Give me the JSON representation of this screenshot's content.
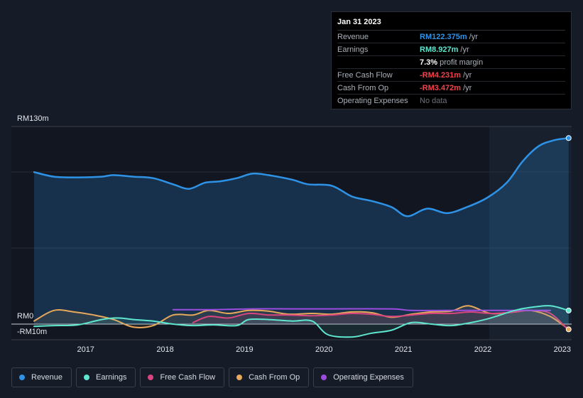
{
  "tooltip": {
    "date": "Jan 31 2023",
    "rows": {
      "revenue": {
        "label": "Revenue",
        "value": "RM122.375m",
        "unit": "/yr",
        "color": "#2e93e6"
      },
      "earnings": {
        "label": "Earnings",
        "value": "RM8.927m",
        "unit": "/yr",
        "color": "#5ee6cf"
      },
      "margin": {
        "value": "7.3%",
        "text": "profit margin"
      },
      "fcf": {
        "label": "Free Cash Flow",
        "value": "-RM4.231m",
        "unit": "/yr",
        "color": "#f0434b"
      },
      "cfo": {
        "label": "Cash From Op",
        "value": "-RM3.472m",
        "unit": "/yr",
        "color": "#f0434b"
      },
      "opex": {
        "label": "Operating Expenses",
        "value": "No data"
      }
    }
  },
  "legend": [
    {
      "label": "Revenue",
      "color": "#2e93e6"
    },
    {
      "label": "Earnings",
      "color": "#5ee6cf"
    },
    {
      "label": "Free Cash Flow",
      "color": "#d9457f"
    },
    {
      "label": "Cash From Op",
      "color": "#e8a95b"
    },
    {
      "label": "Operating Expenses",
      "color": "#9c4de0"
    }
  ],
  "chart_data": {
    "type": "area",
    "y_top_label": "RM130m",
    "y_zero_label": "RM0",
    "y_bottom_label": "-RM10m",
    "ylim": [
      -10,
      130
    ],
    "xlim": [
      2016.35,
      2023.1
    ],
    "x_ticks": [
      {
        "v": 2017,
        "label": "2017"
      },
      {
        "v": 2018,
        "label": "2018"
      },
      {
        "v": 2019,
        "label": "2019"
      },
      {
        "v": 2020,
        "label": "2020"
      },
      {
        "v": 2021,
        "label": "2021"
      },
      {
        "v": 2022,
        "label": "2022"
      },
      {
        "v": 2023,
        "label": "2023"
      }
    ],
    "forecast_start": 2022.08,
    "series": [
      {
        "key": "revenue",
        "color": "#2e93e6",
        "fill": true,
        "points": [
          [
            2016.35,
            100
          ],
          [
            2016.6,
            97
          ],
          [
            2016.9,
            96.5
          ],
          [
            2017.2,
            97
          ],
          [
            2017.35,
            98
          ],
          [
            2017.6,
            97
          ],
          [
            2017.85,
            96
          ],
          [
            2018.1,
            92
          ],
          [
            2018.3,
            89
          ],
          [
            2018.5,
            93
          ],
          [
            2018.7,
            94
          ],
          [
            2018.9,
            96
          ],
          [
            2019.1,
            99
          ],
          [
            2019.3,
            98
          ],
          [
            2019.6,
            95
          ],
          [
            2019.8,
            92
          ],
          [
            2020.1,
            91
          ],
          [
            2020.35,
            84
          ],
          [
            2020.6,
            81
          ],
          [
            2020.85,
            77
          ],
          [
            2021.05,
            71
          ],
          [
            2021.3,
            76
          ],
          [
            2021.55,
            73
          ],
          [
            2021.8,
            77
          ],
          [
            2022.05,
            83
          ],
          [
            2022.3,
            93
          ],
          [
            2022.5,
            107
          ],
          [
            2022.7,
            117
          ],
          [
            2022.9,
            121
          ],
          [
            2023.08,
            122.375
          ]
        ]
      },
      {
        "key": "earnings",
        "color": "#5ee6cf",
        "fill": false,
        "points": [
          [
            2016.35,
            -1.5
          ],
          [
            2016.6,
            -1
          ],
          [
            2016.9,
            -0.5
          ],
          [
            2017.2,
            3
          ],
          [
            2017.4,
            4
          ],
          [
            2017.6,
            3
          ],
          [
            2017.85,
            2
          ],
          [
            2018.1,
            0
          ],
          [
            2018.35,
            -1
          ],
          [
            2018.6,
            -0.5
          ],
          [
            2018.9,
            -1
          ],
          [
            2019.05,
            3
          ],
          [
            2019.3,
            3
          ],
          [
            2019.6,
            2
          ],
          [
            2019.85,
            2
          ],
          [
            2020.05,
            -7
          ],
          [
            2020.35,
            -8.5
          ],
          [
            2020.6,
            -6
          ],
          [
            2020.85,
            -4
          ],
          [
            2021.1,
            1
          ],
          [
            2021.35,
            0
          ],
          [
            2021.6,
            -1
          ],
          [
            2021.85,
            1
          ],
          [
            2022.1,
            4
          ],
          [
            2022.4,
            9
          ],
          [
            2022.6,
            11
          ],
          [
            2022.85,
            12
          ],
          [
            2023.08,
            8.927
          ]
        ]
      },
      {
        "key": "fcf",
        "color": "#d9457f",
        "fill": false,
        "points": [
          [
            2018.35,
            1
          ],
          [
            2018.55,
            5
          ],
          [
            2018.8,
            4
          ],
          [
            2019.05,
            7
          ],
          [
            2019.3,
            6
          ],
          [
            2019.55,
            6
          ],
          [
            2019.85,
            5.5
          ],
          [
            2020.1,
            6
          ],
          [
            2020.35,
            7
          ],
          [
            2020.6,
            6.5
          ],
          [
            2020.85,
            5
          ],
          [
            2021.1,
            6
          ],
          [
            2021.35,
            7
          ],
          [
            2021.6,
            7
          ],
          [
            2021.85,
            8
          ],
          [
            2022.1,
            7
          ],
          [
            2022.4,
            8
          ],
          [
            2022.6,
            9
          ],
          [
            2022.85,
            7
          ],
          [
            2023.08,
            -4.231
          ]
        ]
      },
      {
        "key": "cfo",
        "color": "#e8a95b",
        "fill": false,
        "points": [
          [
            2016.35,
            2
          ],
          [
            2016.6,
            9
          ],
          [
            2016.85,
            8
          ],
          [
            2017.1,
            6
          ],
          [
            2017.35,
            3
          ],
          [
            2017.6,
            -2
          ],
          [
            2017.85,
            -1
          ],
          [
            2018.1,
            6
          ],
          [
            2018.35,
            6
          ],
          [
            2018.55,
            9
          ],
          [
            2018.8,
            7
          ],
          [
            2019.05,
            9
          ],
          [
            2019.3,
            8.5
          ],
          [
            2019.55,
            6.5
          ],
          [
            2019.85,
            7
          ],
          [
            2020.1,
            6.5
          ],
          [
            2020.35,
            8
          ],
          [
            2020.6,
            7.5
          ],
          [
            2020.85,
            4.5
          ],
          [
            2021.1,
            6.5
          ],
          [
            2021.35,
            8
          ],
          [
            2021.6,
            8.5
          ],
          [
            2021.82,
            12
          ],
          [
            2022.1,
            7
          ],
          [
            2022.4,
            8
          ],
          [
            2022.6,
            9
          ],
          [
            2022.85,
            5
          ],
          [
            2023.08,
            -3.472
          ]
        ]
      },
      {
        "key": "opex",
        "color": "#9c4de0",
        "fill": false,
        "points": [
          [
            2018.1,
            9.5
          ],
          [
            2018.6,
            9.5
          ],
          [
            2019.1,
            10
          ],
          [
            2019.6,
            10
          ],
          [
            2020.1,
            10
          ],
          [
            2020.85,
            10
          ],
          [
            2021.1,
            9
          ],
          [
            2021.6,
            9
          ],
          [
            2022.1,
            9
          ],
          [
            2022.6,
            9
          ],
          [
            2022.85,
            9
          ]
        ]
      }
    ]
  }
}
